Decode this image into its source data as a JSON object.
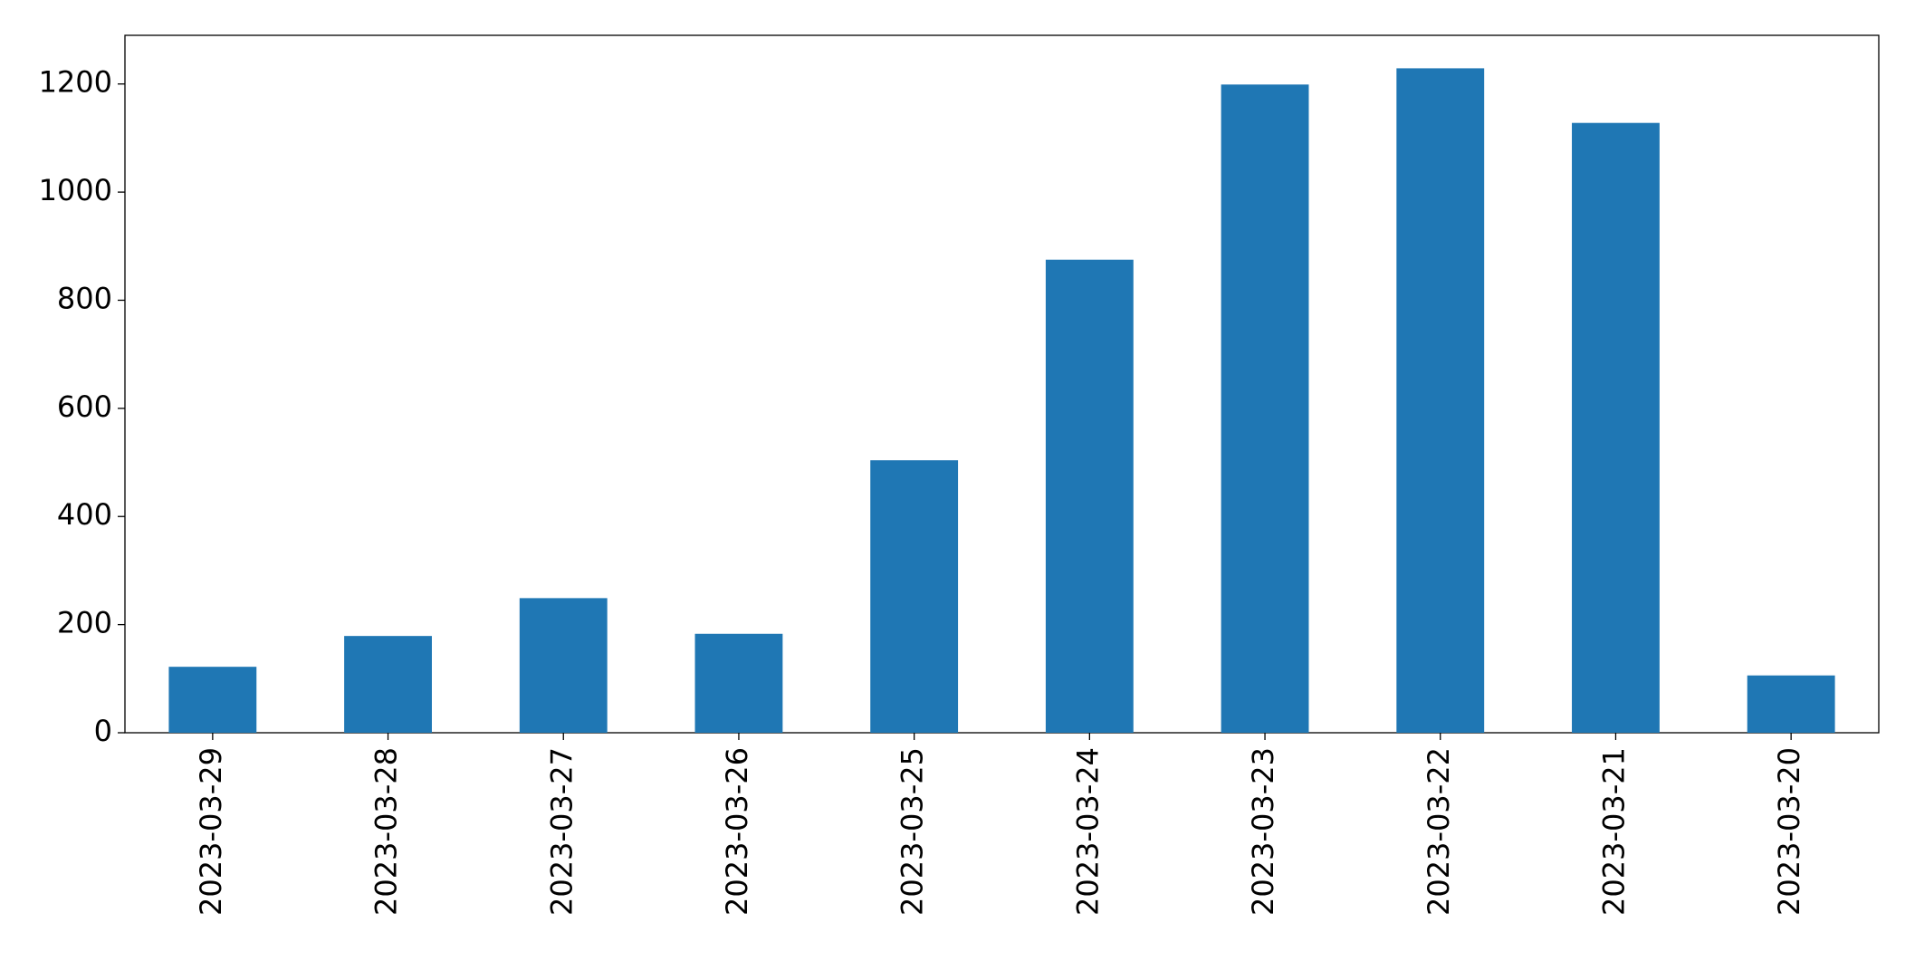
{
  "chart_data": {
    "type": "bar",
    "categories": [
      "2023-03-29",
      "2023-03-28",
      "2023-03-27",
      "2023-03-26",
      "2023-03-25",
      "2023-03-24",
      "2023-03-23",
      "2023-03-22",
      "2023-03-21",
      "2023-03-20"
    ],
    "values": [
      122,
      179,
      249,
      183,
      504,
      875,
      1199,
      1229,
      1128,
      106
    ],
    "color": "#1f77b4",
    "ylim": [
      0,
      1290
    ],
    "yticks": [
      0,
      200,
      400,
      600,
      800,
      1000,
      1200
    ],
    "grid": false
  }
}
